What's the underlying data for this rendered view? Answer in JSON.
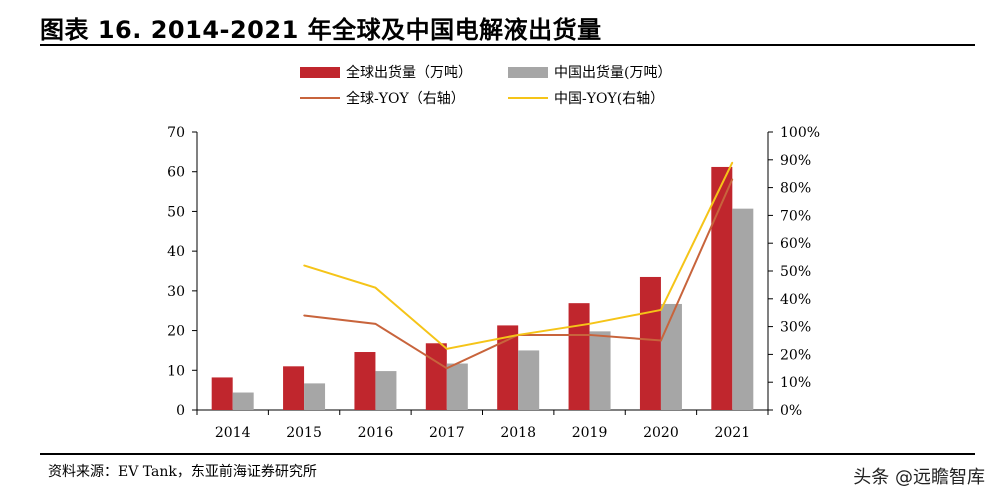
{
  "title": "图表 16. 2014-2021 年全球及中国电解液出货量",
  "source": "资料来源：EV Tank，东亚前海证券研究所",
  "watermark": "头条 @远瞻智库",
  "colors": {
    "global_bar": "#c0262d",
    "china_bar": "#a6a6a6",
    "global_yoy": "#c8643c",
    "china_yoy": "#f5c418"
  },
  "legend": {
    "global_bar": "全球出货量（万吨）",
    "china_bar": "中国出货量(万吨）",
    "global_yoy": "全球-YOY（右轴）",
    "china_yoy": "中国-YOY(右轴）"
  },
  "chart_data": {
    "type": "bar",
    "categories": [
      "2014",
      "2015",
      "2016",
      "2017",
      "2018",
      "2019",
      "2020",
      "2021"
    ],
    "ylim": [
      0,
      70
    ],
    "y_ticks": [
      "0",
      "10",
      "20",
      "30",
      "40",
      "50",
      "60",
      "70"
    ],
    "y2lim": [
      0,
      100
    ],
    "y2_ticks": [
      "0%",
      "10%",
      "20%",
      "30%",
      "40%",
      "50%",
      "60%",
      "70%",
      "80%",
      "90%",
      "100%"
    ],
    "series": [
      {
        "name": "全球出货量（万吨）",
        "kind": "bar",
        "axis": "left",
        "values": [
          8.2,
          11.0,
          14.6,
          16.8,
          21.3,
          26.9,
          33.5,
          61.2
        ]
      },
      {
        "name": "中国出货量(万吨）",
        "kind": "bar",
        "axis": "left",
        "values": [
          4.4,
          6.7,
          9.8,
          11.7,
          15.0,
          19.8,
          26.7,
          50.7
        ]
      },
      {
        "name": "全球-YOY（右轴）",
        "kind": "line",
        "axis": "right",
        "values": [
          null,
          34.0,
          31.0,
          15.0,
          27.0,
          27.0,
          25.0,
          83.0
        ]
      },
      {
        "name": "中国-YOY(右轴）",
        "kind": "line",
        "axis": "right",
        "values": [
          null,
          52.0,
          44.0,
          22.0,
          27.0,
          31.0,
          36.0,
          89.0
        ]
      }
    ]
  }
}
